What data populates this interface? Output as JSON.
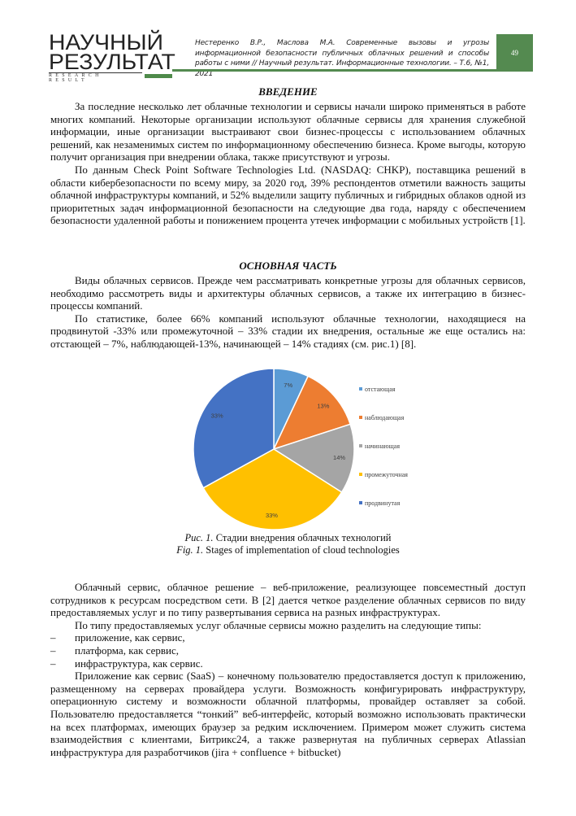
{
  "header": {
    "logo_line1": "НАУЧНЫЙ",
    "logo_line2": "РЕЗУЛЬТАТ",
    "logo_sub": "RESEARCH RESULT",
    "citation": "Нестеренко В.Р., Маслова М.А. Современные вызовы и угрозы информационной безопасности публичных облачных решений и способы работы с ними // Научный результат. Информационные технологии. – Т.6, №1, 2021",
    "page_number": "49"
  },
  "intro": {
    "heading": "ВВЕДЕНИЕ",
    "paragraphs": [
      "За последние несколько лет облачные технологии и сервисы начали широко применяться в работе многих компаний. Некоторые организации используют облачные сервисы для хранения служебной информации, иные организации выстраивают свои бизнес-процессы с использованием облачных решений, как незаменимых систем по информационному обеспечению бизнеса. Кроме выгоды, которую получит организация при внедрении облака, также присутствуют и угрозы.",
      "По данным Check Point Software Technologies Ltd. (NASDAQ: CHKP), поставщика решений в области кибербезопасности по всему миру, за 2020 год, 39% респондентов отметили важность защиты облачной инфраструктуры компаний, и 52% выделили защиту публичных и гибридных облаков одной из приоритетных задач информационной безопасности на следующие  два года, наряду с обеспечением безопасности удаленной работы и понижением процента утечек информации с мобильных устройств [1]."
    ]
  },
  "main": {
    "heading": "ОСНОВНАЯ ЧАСТЬ",
    "paragraphs": [
      "Виды облачных сервисов. Прежде чем рассматривать конкретные угрозы для облачных сервисов, необходимо рассмотреть виды и архитектуры облачных сервисов, а также их интеграцию в бизнес-процессы компаний.",
      "По статистике, более 66% компаний используют облачные технологии, находящиеся на продвинутой -33% или промежуточной – 33% стадии их внедрения, остальные же еще остались на: отстающей – 7%, наблюдающей-13%, начинающей – 14% стадиях (см. рис.1) [8]."
    ]
  },
  "figure": {
    "caption_ru_label": "Рис. 1.",
    "caption_ru": " Стадии внедрения облачных технологий",
    "caption_en_label": "Fig. 1.",
    "caption_en": " Stages of implementation of cloud technologies"
  },
  "chart_data": {
    "type": "pie",
    "categories": [
      "отстающая",
      "наблюдающая",
      "начинающая",
      "промежуточная",
      "продвинутая"
    ],
    "values": [
      7,
      13,
      14,
      33,
      33
    ],
    "labels": [
      "7%",
      "13%",
      "14%",
      "33%",
      "33%"
    ],
    "colors": [
      "#5b9bd5",
      "#ed7d31",
      "#a5a5a5",
      "#ffc000",
      "#4472c4"
    ],
    "legend": "right"
  },
  "after": {
    "paragraphs": [
      "Облачный сервис, облачное решение – веб-приложение, реализующее повсеместный доступ сотрудников к ресурсам посредством сети. В [2] дается четкое разделение облачных сервисов по виду предоставляемых услуг и по типу развертывания сервиса на разных инфраструктурах.",
      "По типу предоставляемых услуг облачные сервисы можно разделить на следующие типы:"
    ],
    "list": [
      "приложение, как сервис,",
      "платформа, как сервис,",
      "инфраструктура, как сервис."
    ],
    "list_dash": "–",
    "last": "Приложение как сервис (SaaS) – конечному пользователю предоставляется доступ к приложению, размещенному на серверах провайдера услуги. Возможность конфигурировать инфраструктуру, операционную систему и возможности облачной платформы, провайдер оставляет за собой. Пользователю предоставляется “тонкий” веб-интерфейс, который возможно использовать практически на всех платформах, имеющих браузер за редким исключением. Примером может служить система взаимодействия с клиентами, Битрикс24, а также развернутая на публичных серверах Atlassian инфраструктура для разработчиков (jira + confluence + bitbucket)"
  }
}
